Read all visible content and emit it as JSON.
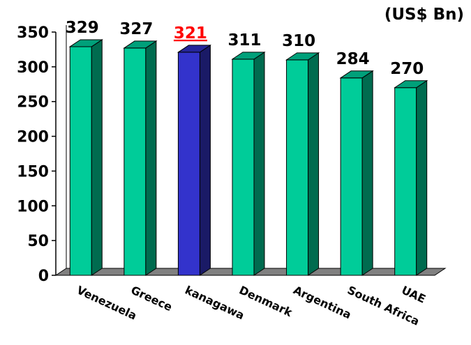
{
  "unit_label": "(US$ Bn)",
  "chart_data": {
    "type": "bar",
    "style": "3d-column",
    "unit": "(US$ Bn)",
    "categories": [
      "Venezuela",
      "Greece",
      "kanagawa",
      "Denmark",
      "Argentina",
      "South Africa",
      "UAE"
    ],
    "values": [
      329,
      327,
      321,
      311,
      310,
      284,
      270
    ],
    "data_labels": [
      "329",
      "327",
      "321",
      "311",
      "310",
      "284",
      "270"
    ],
    "highlight_index": 2,
    "highlight_label_style": "red-underlined",
    "ylim": [
      0,
      350
    ],
    "yticks": [
      0,
      50,
      100,
      150,
      200,
      250,
      300,
      350
    ],
    "ytick_labels": [
      "0",
      "50",
      "100",
      "150",
      "200",
      "250",
      "300",
      "350"
    ],
    "grid": false,
    "colors": {
      "bar_front": "#00cc99",
      "bar_side": "#006b4f",
      "bar_top": "#00a07a",
      "highlight_front": "#3333cc",
      "highlight_side": "#1a1a66",
      "highlight_top": "#26269a",
      "highlight_label": "#ff0000",
      "floor": "#808080",
      "axis": "#000000"
    }
  }
}
